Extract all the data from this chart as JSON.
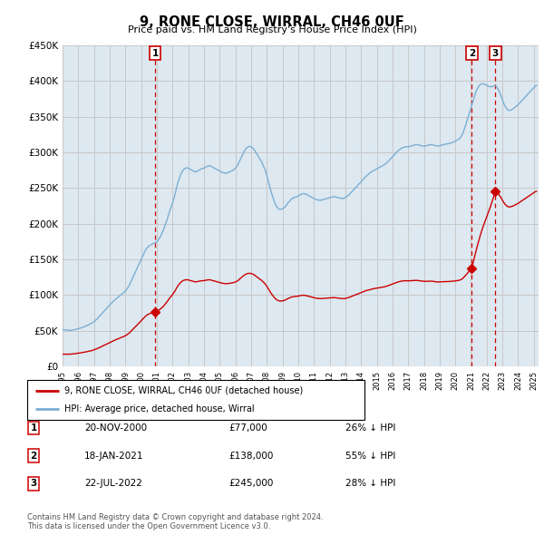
{
  "title": "9, RONE CLOSE, WIRRAL, CH46 0UF",
  "subtitle": "Price paid vs. HM Land Registry's House Price Index (HPI)",
  "ylabel_ticks": [
    "£0",
    "£50K",
    "£100K",
    "£150K",
    "£200K",
    "£250K",
    "£300K",
    "£350K",
    "£400K",
    "£450K"
  ],
  "ylim": [
    0,
    450000
  ],
  "ytick_vals": [
    0,
    50000,
    100000,
    150000,
    200000,
    250000,
    300000,
    350000,
    400000,
    450000
  ],
  "hpi_color": "#7bafd4",
  "price_color": "#cc0000",
  "vline_color": "#cc0000",
  "grid_color": "#c8c8c8",
  "chart_bg": "#dde8f0",
  "bg_color": "#ffffff",
  "sales": [
    {
      "date_num": 2000.89,
      "price": 77000,
      "label": "1",
      "date_str": "20-NOV-2000",
      "pct": "26% ↓ HPI"
    },
    {
      "date_num": 2021.05,
      "price": 138000,
      "label": "2",
      "date_str": "18-JAN-2021",
      "pct": "55% ↓ HPI"
    },
    {
      "date_num": 2022.55,
      "price": 245000,
      "label": "3",
      "date_str": "22-JUL-2022",
      "pct": "28% ↓ HPI"
    }
  ],
  "hpi_data": [
    [
      1995.0,
      52000
    ],
    [
      1995.08,
      51500
    ],
    [
      1995.17,
      51200
    ],
    [
      1995.25,
      51000
    ],
    [
      1995.33,
      50800
    ],
    [
      1995.42,
      50600
    ],
    [
      1995.5,
      50500
    ],
    [
      1995.58,
      50800
    ],
    [
      1995.67,
      51000
    ],
    [
      1995.75,
      51500
    ],
    [
      1995.83,
      52000
    ],
    [
      1995.92,
      52500
    ],
    [
      1996.0,
      53000
    ],
    [
      1996.08,
      53500
    ],
    [
      1996.17,
      54000
    ],
    [
      1996.25,
      54800
    ],
    [
      1996.33,
      55500
    ],
    [
      1996.42,
      56000
    ],
    [
      1996.5,
      57000
    ],
    [
      1996.58,
      57500
    ],
    [
      1996.67,
      58500
    ],
    [
      1996.75,
      59500
    ],
    [
      1996.83,
      60500
    ],
    [
      1996.92,
      61500
    ],
    [
      1997.0,
      63000
    ],
    [
      1997.08,
      64500
    ],
    [
      1997.17,
      66000
    ],
    [
      1997.25,
      68000
    ],
    [
      1997.33,
      70000
    ],
    [
      1997.42,
      72000
    ],
    [
      1997.5,
      74000
    ],
    [
      1997.58,
      76000
    ],
    [
      1997.67,
      78000
    ],
    [
      1997.75,
      80000
    ],
    [
      1997.83,
      82000
    ],
    [
      1997.92,
      84000
    ],
    [
      1998.0,
      86000
    ],
    [
      1998.08,
      88000
    ],
    [
      1998.17,
      90000
    ],
    [
      1998.25,
      92000
    ],
    [
      1998.33,
      93500
    ],
    [
      1998.42,
      95000
    ],
    [
      1998.5,
      96500
    ],
    [
      1998.58,
      98000
    ],
    [
      1998.67,
      99500
    ],
    [
      1998.75,
      101000
    ],
    [
      1998.83,
      102500
    ],
    [
      1998.92,
      104000
    ],
    [
      1999.0,
      106000
    ],
    [
      1999.08,
      108000
    ],
    [
      1999.17,
      111000
    ],
    [
      1999.25,
      114000
    ],
    [
      1999.33,
      118000
    ],
    [
      1999.42,
      122000
    ],
    [
      1999.5,
      126000
    ],
    [
      1999.58,
      130000
    ],
    [
      1999.67,
      134000
    ],
    [
      1999.75,
      138000
    ],
    [
      1999.83,
      142000
    ],
    [
      1999.92,
      146000
    ],
    [
      2000.0,
      150000
    ],
    [
      2000.08,
      154000
    ],
    [
      2000.17,
      158000
    ],
    [
      2000.25,
      162000
    ],
    [
      2000.33,
      165000
    ],
    [
      2000.42,
      167000
    ],
    [
      2000.5,
      169000
    ],
    [
      2000.58,
      170000
    ],
    [
      2000.67,
      171000
    ],
    [
      2000.75,
      172000
    ],
    [
      2000.83,
      173000
    ],
    [
      2000.92,
      174000
    ],
    [
      2001.0,
      175000
    ],
    [
      2001.08,
      177000
    ],
    [
      2001.17,
      180000
    ],
    [
      2001.25,
      183000
    ],
    [
      2001.33,
      187000
    ],
    [
      2001.42,
      191000
    ],
    [
      2001.5,
      196000
    ],
    [
      2001.58,
      201000
    ],
    [
      2001.67,
      207000
    ],
    [
      2001.75,
      213000
    ],
    [
      2001.83,
      219000
    ],
    [
      2001.92,
      224000
    ],
    [
      2002.0,
      229000
    ],
    [
      2002.08,
      235000
    ],
    [
      2002.17,
      242000
    ],
    [
      2002.25,
      250000
    ],
    [
      2002.33,
      257000
    ],
    [
      2002.42,
      263000
    ],
    [
      2002.5,
      268000
    ],
    [
      2002.58,
      272000
    ],
    [
      2002.67,
      275000
    ],
    [
      2002.75,
      277000
    ],
    [
      2002.83,
      278000
    ],
    [
      2002.92,
      278500
    ],
    [
      2003.0,
      278000
    ],
    [
      2003.08,
      277000
    ],
    [
      2003.17,
      276000
    ],
    [
      2003.25,
      275000
    ],
    [
      2003.33,
      274000
    ],
    [
      2003.42,
      273000
    ],
    [
      2003.5,
      273000
    ],
    [
      2003.58,
      274000
    ],
    [
      2003.67,
      275000
    ],
    [
      2003.75,
      276000
    ],
    [
      2003.83,
      277000
    ],
    [
      2003.92,
      277500
    ],
    [
      2004.0,
      278000
    ],
    [
      2004.08,
      279000
    ],
    [
      2004.17,
      280000
    ],
    [
      2004.25,
      281000
    ],
    [
      2004.33,
      281500
    ],
    [
      2004.42,
      281000
    ],
    [
      2004.5,
      280000
    ],
    [
      2004.58,
      279000
    ],
    [
      2004.67,
      278000
    ],
    [
      2004.75,
      277000
    ],
    [
      2004.83,
      276000
    ],
    [
      2004.92,
      275000
    ],
    [
      2005.0,
      274000
    ],
    [
      2005.08,
      273000
    ],
    [
      2005.17,
      272000
    ],
    [
      2005.25,
      271500
    ],
    [
      2005.33,
      271000
    ],
    [
      2005.42,
      271000
    ],
    [
      2005.5,
      271500
    ],
    [
      2005.58,
      272000
    ],
    [
      2005.67,
      273000
    ],
    [
      2005.75,
      274000
    ],
    [
      2005.83,
      275000
    ],
    [
      2005.92,
      276000
    ],
    [
      2006.0,
      278000
    ],
    [
      2006.08,
      280000
    ],
    [
      2006.17,
      283000
    ],
    [
      2006.25,
      287000
    ],
    [
      2006.33,
      291000
    ],
    [
      2006.42,
      295000
    ],
    [
      2006.5,
      299000
    ],
    [
      2006.58,
      302000
    ],
    [
      2006.67,
      305000
    ],
    [
      2006.75,
      307000
    ],
    [
      2006.83,
      308000
    ],
    [
      2006.92,
      308500
    ],
    [
      2007.0,
      308000
    ],
    [
      2007.08,
      307000
    ],
    [
      2007.17,
      305000
    ],
    [
      2007.25,
      302000
    ],
    [
      2007.33,
      299000
    ],
    [
      2007.42,
      296000
    ],
    [
      2007.5,
      293000
    ],
    [
      2007.58,
      290000
    ],
    [
      2007.67,
      287000
    ],
    [
      2007.75,
      283000
    ],
    [
      2007.83,
      279000
    ],
    [
      2007.92,
      274000
    ],
    [
      2008.0,
      268000
    ],
    [
      2008.08,
      261000
    ],
    [
      2008.17,
      254000
    ],
    [
      2008.25,
      247000
    ],
    [
      2008.33,
      241000
    ],
    [
      2008.42,
      235000
    ],
    [
      2008.5,
      230000
    ],
    [
      2008.58,
      226000
    ],
    [
      2008.67,
      223000
    ],
    [
      2008.75,
      221000
    ],
    [
      2008.83,
      220000
    ],
    [
      2008.92,
      220500
    ],
    [
      2009.0,
      221000
    ],
    [
      2009.08,
      222000
    ],
    [
      2009.17,
      224000
    ],
    [
      2009.25,
      226000
    ],
    [
      2009.33,
      229000
    ],
    [
      2009.42,
      231000
    ],
    [
      2009.5,
      233000
    ],
    [
      2009.58,
      235000
    ],
    [
      2009.67,
      236000
    ],
    [
      2009.75,
      237000
    ],
    [
      2009.83,
      237500
    ],
    [
      2009.92,
      238000
    ],
    [
      2010.0,
      239000
    ],
    [
      2010.08,
      240000
    ],
    [
      2010.17,
      241000
    ],
    [
      2010.25,
      242000
    ],
    [
      2010.33,
      242500
    ],
    [
      2010.42,
      242000
    ],
    [
      2010.5,
      241500
    ],
    [
      2010.58,
      240500
    ],
    [
      2010.67,
      239500
    ],
    [
      2010.75,
      238500
    ],
    [
      2010.83,
      237500
    ],
    [
      2010.92,
      236500
    ],
    [
      2011.0,
      235500
    ],
    [
      2011.08,
      234500
    ],
    [
      2011.17,
      234000
    ],
    [
      2011.25,
      233500
    ],
    [
      2011.33,
      233000
    ],
    [
      2011.42,
      233000
    ],
    [
      2011.5,
      233500
    ],
    [
      2011.58,
      234000
    ],
    [
      2011.67,
      234500
    ],
    [
      2011.75,
      235000
    ],
    [
      2011.83,
      235500
    ],
    [
      2011.92,
      236000
    ],
    [
      2012.0,
      236500
    ],
    [
      2012.08,
      237000
    ],
    [
      2012.17,
      237500
    ],
    [
      2012.25,
      238000
    ],
    [
      2012.33,
      238000
    ],
    [
      2012.42,
      237500
    ],
    [
      2012.5,
      237000
    ],
    [
      2012.58,
      236500
    ],
    [
      2012.67,
      236000
    ],
    [
      2012.75,
      235500
    ],
    [
      2012.83,
      235500
    ],
    [
      2012.92,
      236000
    ],
    [
      2013.0,
      237000
    ],
    [
      2013.08,
      238000
    ],
    [
      2013.17,
      239500
    ],
    [
      2013.25,
      241000
    ],
    [
      2013.33,
      243000
    ],
    [
      2013.42,
      245000
    ],
    [
      2013.5,
      247000
    ],
    [
      2013.58,
      249000
    ],
    [
      2013.67,
      251000
    ],
    [
      2013.75,
      253000
    ],
    [
      2013.83,
      255000
    ],
    [
      2013.92,
      257000
    ],
    [
      2014.0,
      259000
    ],
    [
      2014.08,
      261000
    ],
    [
      2014.17,
      263000
    ],
    [
      2014.25,
      265000
    ],
    [
      2014.33,
      267000
    ],
    [
      2014.42,
      268500
    ],
    [
      2014.5,
      270000
    ],
    [
      2014.58,
      271500
    ],
    [
      2014.67,
      273000
    ],
    [
      2014.75,
      274000
    ],
    [
      2014.83,
      275000
    ],
    [
      2014.92,
      276000
    ],
    [
      2015.0,
      277000
    ],
    [
      2015.08,
      278000
    ],
    [
      2015.17,
      279000
    ],
    [
      2015.25,
      280000
    ],
    [
      2015.33,
      281000
    ],
    [
      2015.42,
      282000
    ],
    [
      2015.5,
      283000
    ],
    [
      2015.58,
      284500
    ],
    [
      2015.67,
      286000
    ],
    [
      2015.75,
      288000
    ],
    [
      2015.83,
      290000
    ],
    [
      2015.92,
      292000
    ],
    [
      2016.0,
      294000
    ],
    [
      2016.08,
      296000
    ],
    [
      2016.17,
      298000
    ],
    [
      2016.25,
      300000
    ],
    [
      2016.33,
      302000
    ],
    [
      2016.42,
      303500
    ],
    [
      2016.5,
      305000
    ],
    [
      2016.58,
      306000
    ],
    [
      2016.67,
      307000
    ],
    [
      2016.75,
      307500
    ],
    [
      2016.83,
      308000
    ],
    [
      2016.92,
      308000
    ],
    [
      2017.0,
      308000
    ],
    [
      2017.08,
      308500
    ],
    [
      2017.17,
      309000
    ],
    [
      2017.25,
      309500
    ],
    [
      2017.33,
      310000
    ],
    [
      2017.42,
      310500
    ],
    [
      2017.5,
      311000
    ],
    [
      2017.58,
      311000
    ],
    [
      2017.67,
      310500
    ],
    [
      2017.75,
      310000
    ],
    [
      2017.83,
      309500
    ],
    [
      2017.92,
      309000
    ],
    [
      2018.0,
      309000
    ],
    [
      2018.08,
      309000
    ],
    [
      2018.17,
      309500
    ],
    [
      2018.25,
      310000
    ],
    [
      2018.33,
      310500
    ],
    [
      2018.42,
      311000
    ],
    [
      2018.5,
      311000
    ],
    [
      2018.58,
      310500
    ],
    [
      2018.67,
      310000
    ],
    [
      2018.75,
      309500
    ],
    [
      2018.83,
      309000
    ],
    [
      2018.92,
      309000
    ],
    [
      2019.0,
      309500
    ],
    [
      2019.08,
      310000
    ],
    [
      2019.17,
      310500
    ],
    [
      2019.25,
      311000
    ],
    [
      2019.33,
      311500
    ],
    [
      2019.42,
      312000
    ],
    [
      2019.5,
      312000
    ],
    [
      2019.58,
      312500
    ],
    [
      2019.67,
      313000
    ],
    [
      2019.75,
      313500
    ],
    [
      2019.83,
      314000
    ],
    [
      2019.92,
      315000
    ],
    [
      2020.0,
      316000
    ],
    [
      2020.08,
      317000
    ],
    [
      2020.17,
      318000
    ],
    [
      2020.25,
      319000
    ],
    [
      2020.33,
      321000
    ],
    [
      2020.42,
      324000
    ],
    [
      2020.5,
      328000
    ],
    [
      2020.58,
      333000
    ],
    [
      2020.67,
      339000
    ],
    [
      2020.75,
      345000
    ],
    [
      2020.83,
      351000
    ],
    [
      2020.92,
      357000
    ],
    [
      2021.0,
      363000
    ],
    [
      2021.08,
      369000
    ],
    [
      2021.17,
      375000
    ],
    [
      2021.25,
      381000
    ],
    [
      2021.33,
      386000
    ],
    [
      2021.42,
      390000
    ],
    [
      2021.5,
      393000
    ],
    [
      2021.58,
      395000
    ],
    [
      2021.67,
      396000
    ],
    [
      2021.75,
      396500
    ],
    [
      2021.83,
      396000
    ],
    [
      2021.92,
      395000
    ],
    [
      2022.0,
      394000
    ],
    [
      2022.08,
      393000
    ],
    [
      2022.17,
      392500
    ],
    [
      2022.25,
      392000
    ],
    [
      2022.33,
      392500
    ],
    [
      2022.42,
      393000
    ],
    [
      2022.5,
      393500
    ],
    [
      2022.58,
      393000
    ],
    [
      2022.67,
      391000
    ],
    [
      2022.75,
      388000
    ],
    [
      2022.83,
      384000
    ],
    [
      2022.92,
      379000
    ],
    [
      2023.0,
      374000
    ],
    [
      2023.08,
      369000
    ],
    [
      2023.17,
      365000
    ],
    [
      2023.25,
      362000
    ],
    [
      2023.33,
      360000
    ],
    [
      2023.42,
      359000
    ],
    [
      2023.5,
      359000
    ],
    [
      2023.58,
      360000
    ],
    [
      2023.67,
      361000
    ],
    [
      2023.75,
      362500
    ],
    [
      2023.83,
      364000
    ],
    [
      2023.92,
      365500
    ],
    [
      2024.0,
      367000
    ],
    [
      2024.08,
      369000
    ],
    [
      2024.17,
      371000
    ],
    [
      2024.25,
      373000
    ],
    [
      2024.33,
      375000
    ],
    [
      2024.42,
      377000
    ],
    [
      2024.5,
      379000
    ],
    [
      2024.58,
      381000
    ],
    [
      2024.67,
      383000
    ],
    [
      2024.75,
      385000
    ],
    [
      2024.83,
      387000
    ],
    [
      2024.92,
      389000
    ],
    [
      2025.0,
      391000
    ],
    [
      2025.08,
      393000
    ],
    [
      2025.17,
      394000
    ]
  ],
  "price_line_scale": 0.485,
  "footnote": "Contains HM Land Registry data © Crown copyright and database right 2024.\nThis data is licensed under the Open Government Licence v3.0.",
  "legend_label1": "9, RONE CLOSE, WIRRAL, CH46 0UF (detached house)",
  "legend_label2": "HPI: Average price, detached house, Wirral"
}
